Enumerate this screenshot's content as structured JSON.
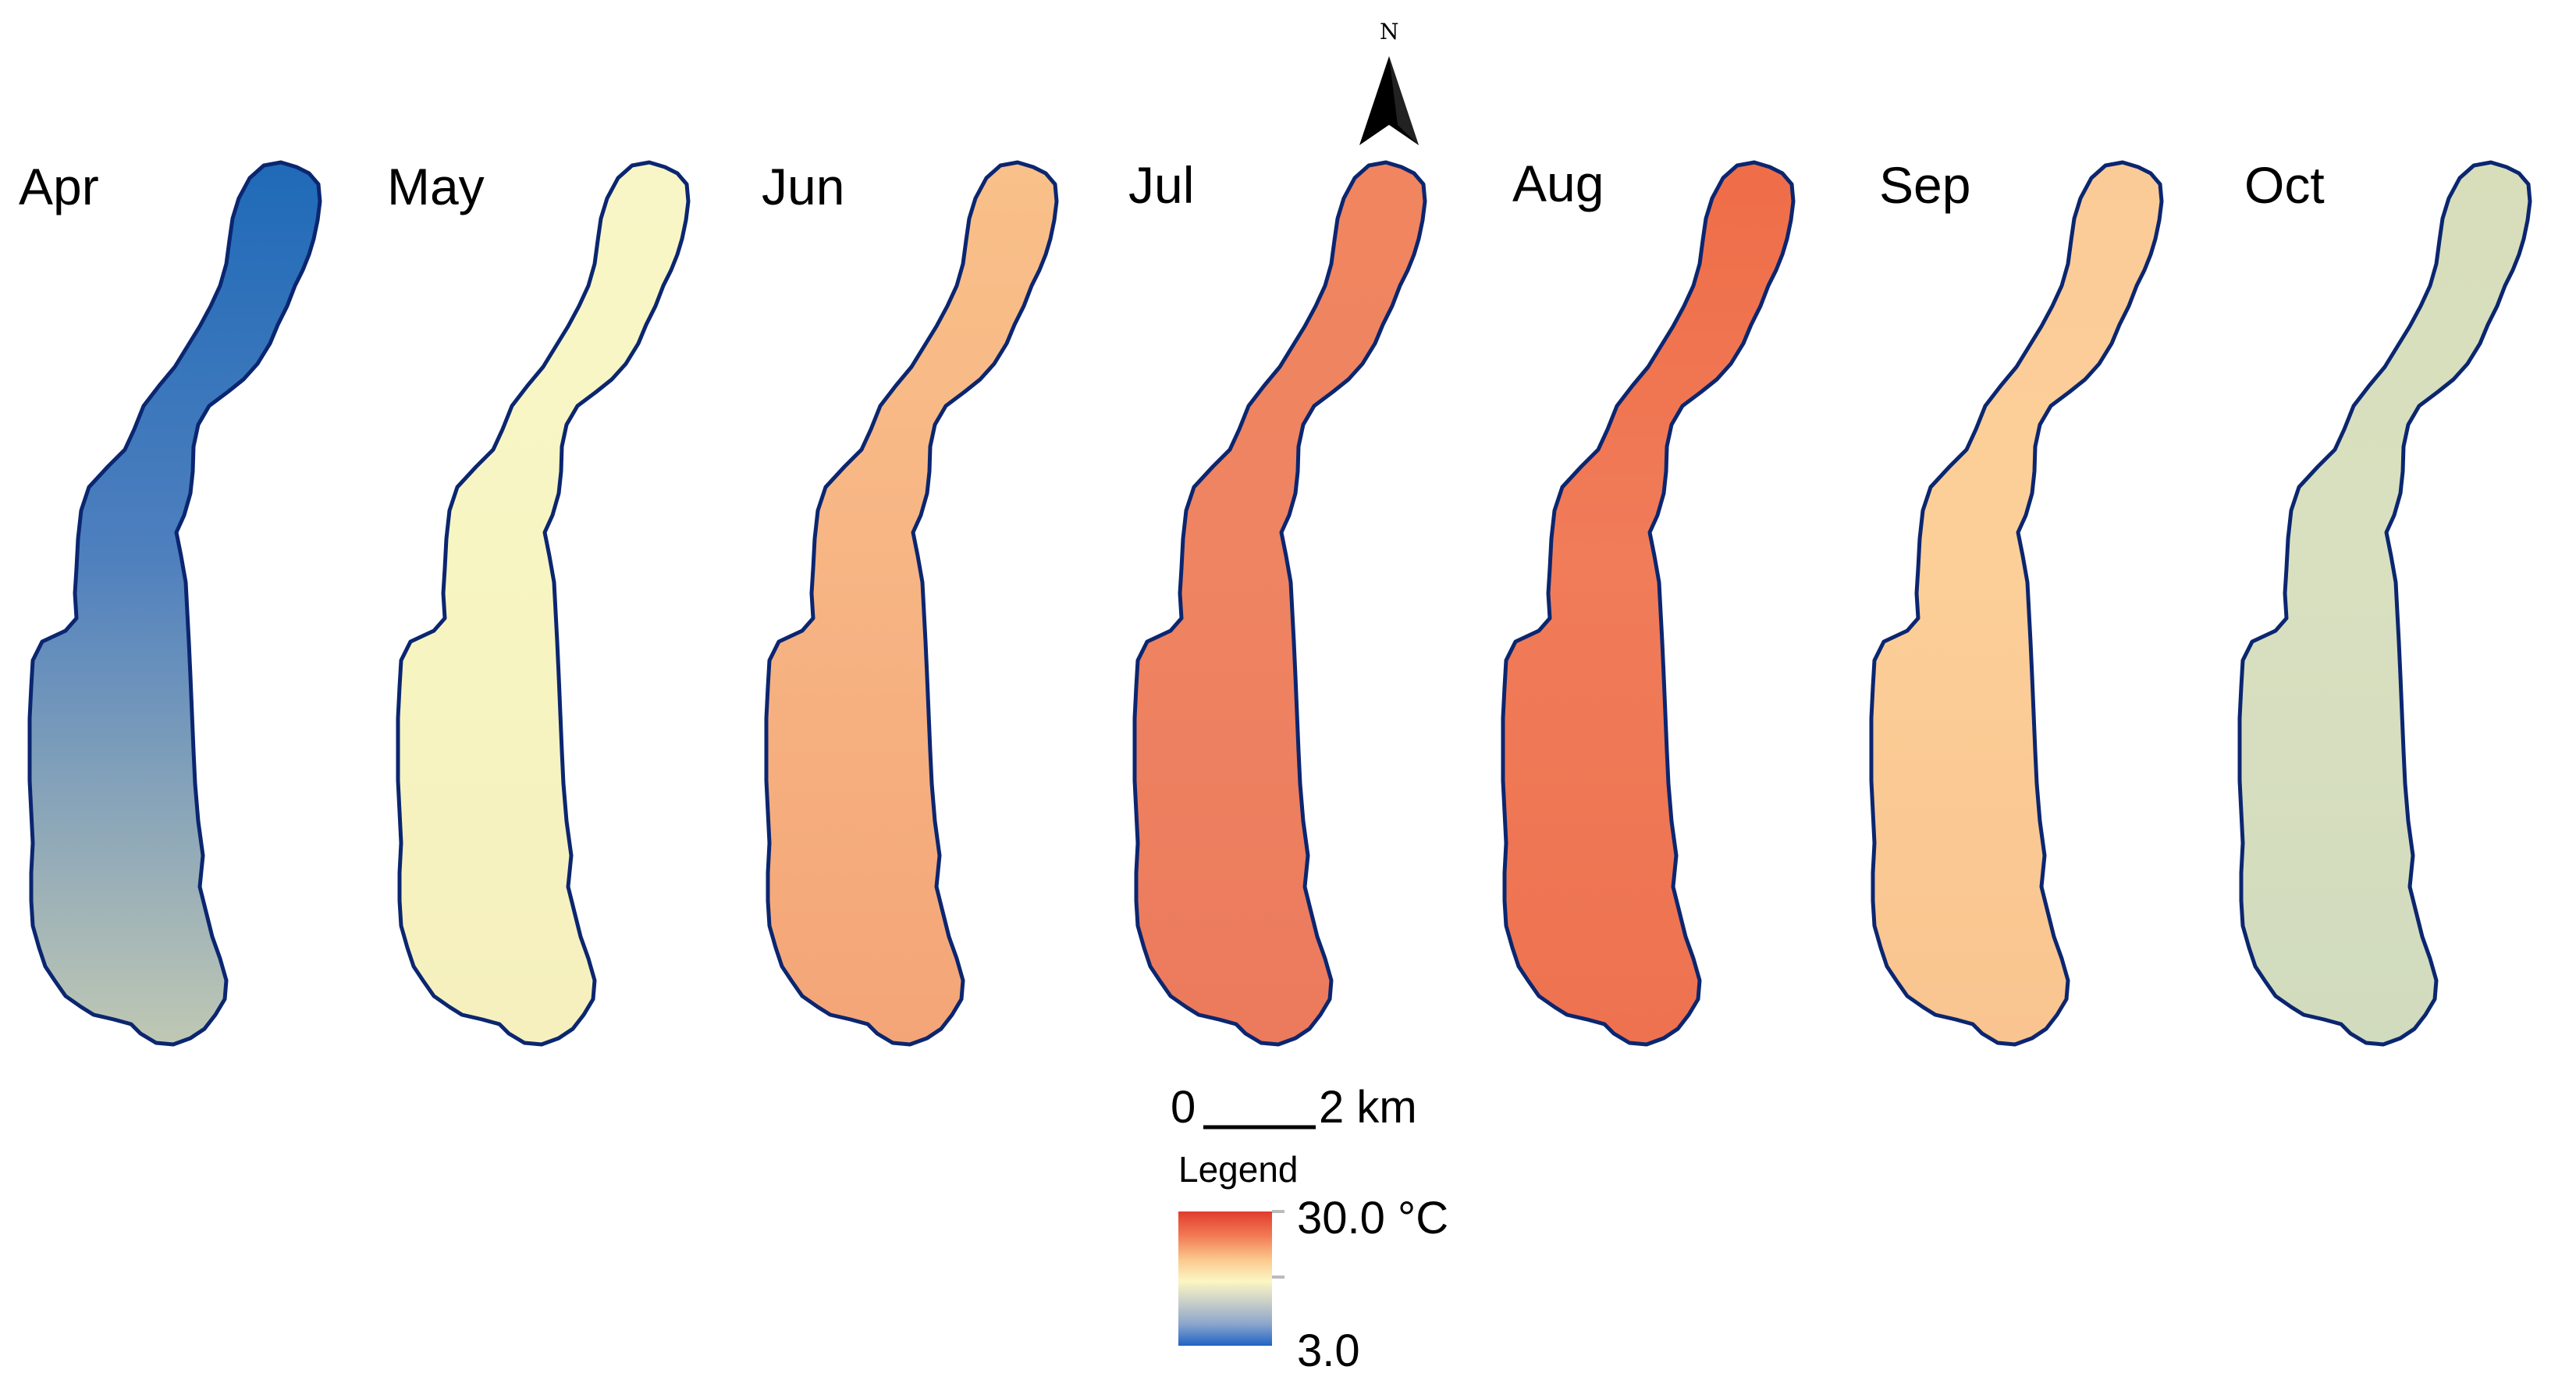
{
  "map": {
    "panels": [
      {
        "month": "Apr",
        "fill": "#4f80be",
        "fill_top": "#1f6ab8",
        "fill_bottom": "#c0c8b4"
      },
      {
        "month": "May",
        "fill": "#f7f5c2",
        "fill_top": "#f8f6c6",
        "fill_bottom": "#f5f0be"
      },
      {
        "month": "Jun",
        "fill": "#f7b584",
        "fill_top": "#f9c089",
        "fill_bottom": "#f4a577"
      },
      {
        "month": "Jul",
        "fill": "#ee8462",
        "fill_top": "#f0855f",
        "fill_bottom": "#ec7a5c"
      },
      {
        "month": "Aug",
        "fill": "#f07c59",
        "fill_top": "#ef6d48",
        "fill_bottom": "#ee7250"
      },
      {
        "month": "Sep",
        "fill": "#fccf98",
        "fill_top": "#fbcb97",
        "fill_bottom": "#f9c48f"
      },
      {
        "month": "Oct",
        "fill": "#d9e0c0",
        "fill_top": "#d8deba",
        "fill_bottom": "#d1dbbd"
      }
    ],
    "outline_color": "#0b2670",
    "north_arrow": {
      "label": "N",
      "icon": "north-arrow-icon"
    },
    "scale_bar": {
      "start": "0",
      "end": "2 km"
    },
    "legend": {
      "title": "Legend",
      "max_label": "30.0 °C",
      "min_label": "3.0",
      "colors": [
        "#e03c2e",
        "#f27a55",
        "#fbc98d",
        "#fbf6c3",
        "#c8cec8",
        "#8aa5cc",
        "#1f64c4"
      ]
    }
  }
}
